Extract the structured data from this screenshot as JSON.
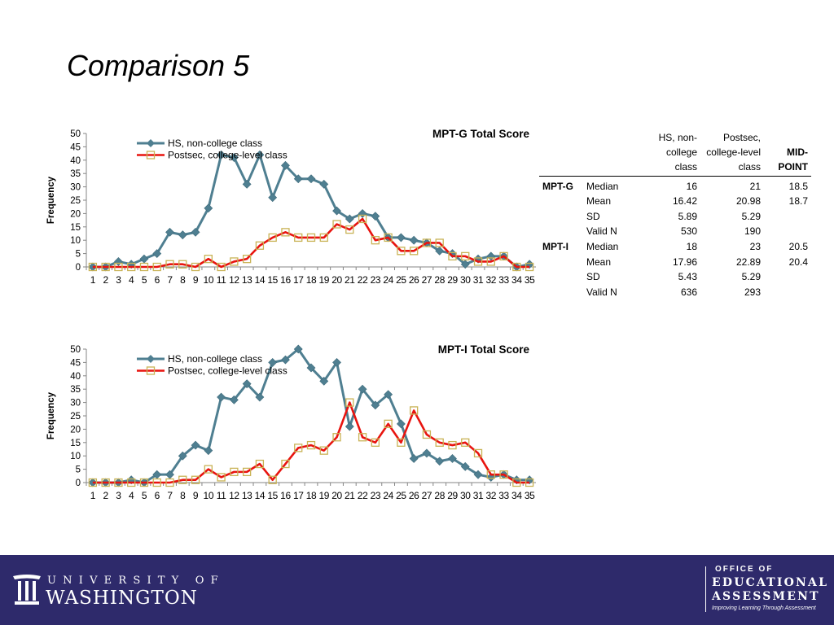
{
  "slide": {
    "title": "Comparison 5"
  },
  "chart_data": [
    {
      "type": "line",
      "title": "MPT-G Total Score",
      "ylabel": "Frequency",
      "xlabel": "",
      "ylim": [
        0,
        50
      ],
      "yticks": [
        0,
        5,
        10,
        15,
        20,
        25,
        30,
        35,
        40,
        45,
        50
      ],
      "categories": [
        "1",
        "2",
        "3",
        "4",
        "5",
        "6",
        "7",
        "8",
        "9",
        "10",
        "11",
        "12",
        "13",
        "14",
        "15",
        "16",
        "17",
        "18",
        "19",
        "20",
        "21",
        "22",
        "23",
        "24",
        "25",
        "26",
        "27",
        "28",
        "29",
        "30",
        "31",
        "32",
        "33",
        "34",
        "35"
      ],
      "legend_position": "top-left",
      "grid": false,
      "series": [
        {
          "name": "HS, non-college class",
          "color": "#4f7f91",
          "marker": "diamond",
          "values": [
            0,
            0,
            2,
            1,
            3,
            5,
            13,
            12,
            13,
            22,
            42,
            41,
            31,
            42,
            26,
            38,
            33,
            33,
            31,
            21,
            18,
            20,
            19,
            11,
            11,
            10,
            9,
            6,
            5,
            1,
            3,
            4,
            4,
            0,
            1
          ]
        },
        {
          "name": "Postsec, college-level class",
          "color": "#e8140f",
          "marker": "square",
          "marker_color": "#c9b356",
          "values": [
            0,
            0,
            0,
            0,
            0,
            0,
            1,
            1,
            0,
            3,
            0,
            2,
            3,
            8,
            11,
            13,
            11,
            11,
            11,
            16,
            14,
            18,
            10,
            11,
            6,
            6,
            9,
            9,
            4,
            4,
            2,
            2,
            4,
            0,
            0
          ]
        }
      ]
    },
    {
      "type": "line",
      "title": "MPT-I Total Score",
      "ylabel": "Frequency",
      "xlabel": "",
      "ylim": [
        0,
        50
      ],
      "yticks": [
        0,
        5,
        10,
        15,
        20,
        25,
        30,
        35,
        40,
        45,
        50
      ],
      "categories": [
        "1",
        "2",
        "3",
        "4",
        "5",
        "6",
        "7",
        "8",
        "9",
        "10",
        "11",
        "12",
        "13",
        "14",
        "15",
        "16",
        "17",
        "18",
        "19",
        "20",
        "21",
        "22",
        "23",
        "24",
        "25",
        "26",
        "27",
        "28",
        "29",
        "30",
        "31",
        "32",
        "33",
        "34",
        "35"
      ],
      "legend_position": "top-left",
      "grid": false,
      "series": [
        {
          "name": "HS, non-college class",
          "color": "#4f7f91",
          "marker": "diamond",
          "values": [
            0,
            0,
            0,
            1,
            0,
            3,
            3,
            10,
            14,
            12,
            32,
            31,
            37,
            32,
            45,
            46,
            50,
            43,
            38,
            45,
            21,
            35,
            29,
            33,
            22,
            9,
            11,
            8,
            9,
            6,
            3,
            2,
            3,
            1,
            1
          ]
        },
        {
          "name": "Postsec, college-level class",
          "color": "#e8140f",
          "marker": "square",
          "marker_color": "#c9b356",
          "values": [
            0,
            0,
            0,
            0,
            0,
            0,
            0,
            1,
            1,
            5,
            2,
            4,
            4,
            7,
            1,
            7,
            13,
            14,
            12,
            17,
            30,
            17,
            15,
            22,
            15,
            27,
            18,
            15,
            14,
            15,
            11,
            3,
            3,
            0,
            0
          ]
        }
      ]
    }
  ],
  "stats_table": {
    "headers": [
      "",
      "",
      "HS, non-college class",
      "Postsec, college-level class",
      "MID-POINT"
    ],
    "rows": [
      {
        "group": "MPT-G",
        "label": "Median",
        "hs": "16",
        "post": "21",
        "mid": "18.5"
      },
      {
        "group": "",
        "label": "Mean",
        "hs": "16.42",
        "post": "20.98",
        "mid": "18.7"
      },
      {
        "group": "",
        "label": "SD",
        "hs": "5.89",
        "post": "5.29",
        "mid": ""
      },
      {
        "group": "",
        "label": "Valid N",
        "hs": "530",
        "post": "190",
        "mid": ""
      },
      {
        "group": "MPT-I",
        "label": "Median",
        "hs": "18",
        "post": "23",
        "mid": "20.5"
      },
      {
        "group": "",
        "label": "Mean",
        "hs": "17.96",
        "post": "22.89",
        "mid": "20.4"
      },
      {
        "group": "",
        "label": "SD",
        "hs": "5.43",
        "post": "5.29",
        "mid": ""
      },
      {
        "group": "",
        "label": "Valid N",
        "hs": "636",
        "post": "293",
        "mid": ""
      }
    ]
  },
  "footer": {
    "bg_color": "#2e2a6b",
    "uw_top": "UNIVERSITY OF",
    "uw_main": "WASHINGTON",
    "oea_line1": "OFFICE OF",
    "oea_line2": "EDUCATIONAL",
    "oea_line3": "ASSESSMENT",
    "oea_tagline": "Improving Learning Through Assessment",
    "uw_logo_icon": "uw-column-logo-icon"
  }
}
